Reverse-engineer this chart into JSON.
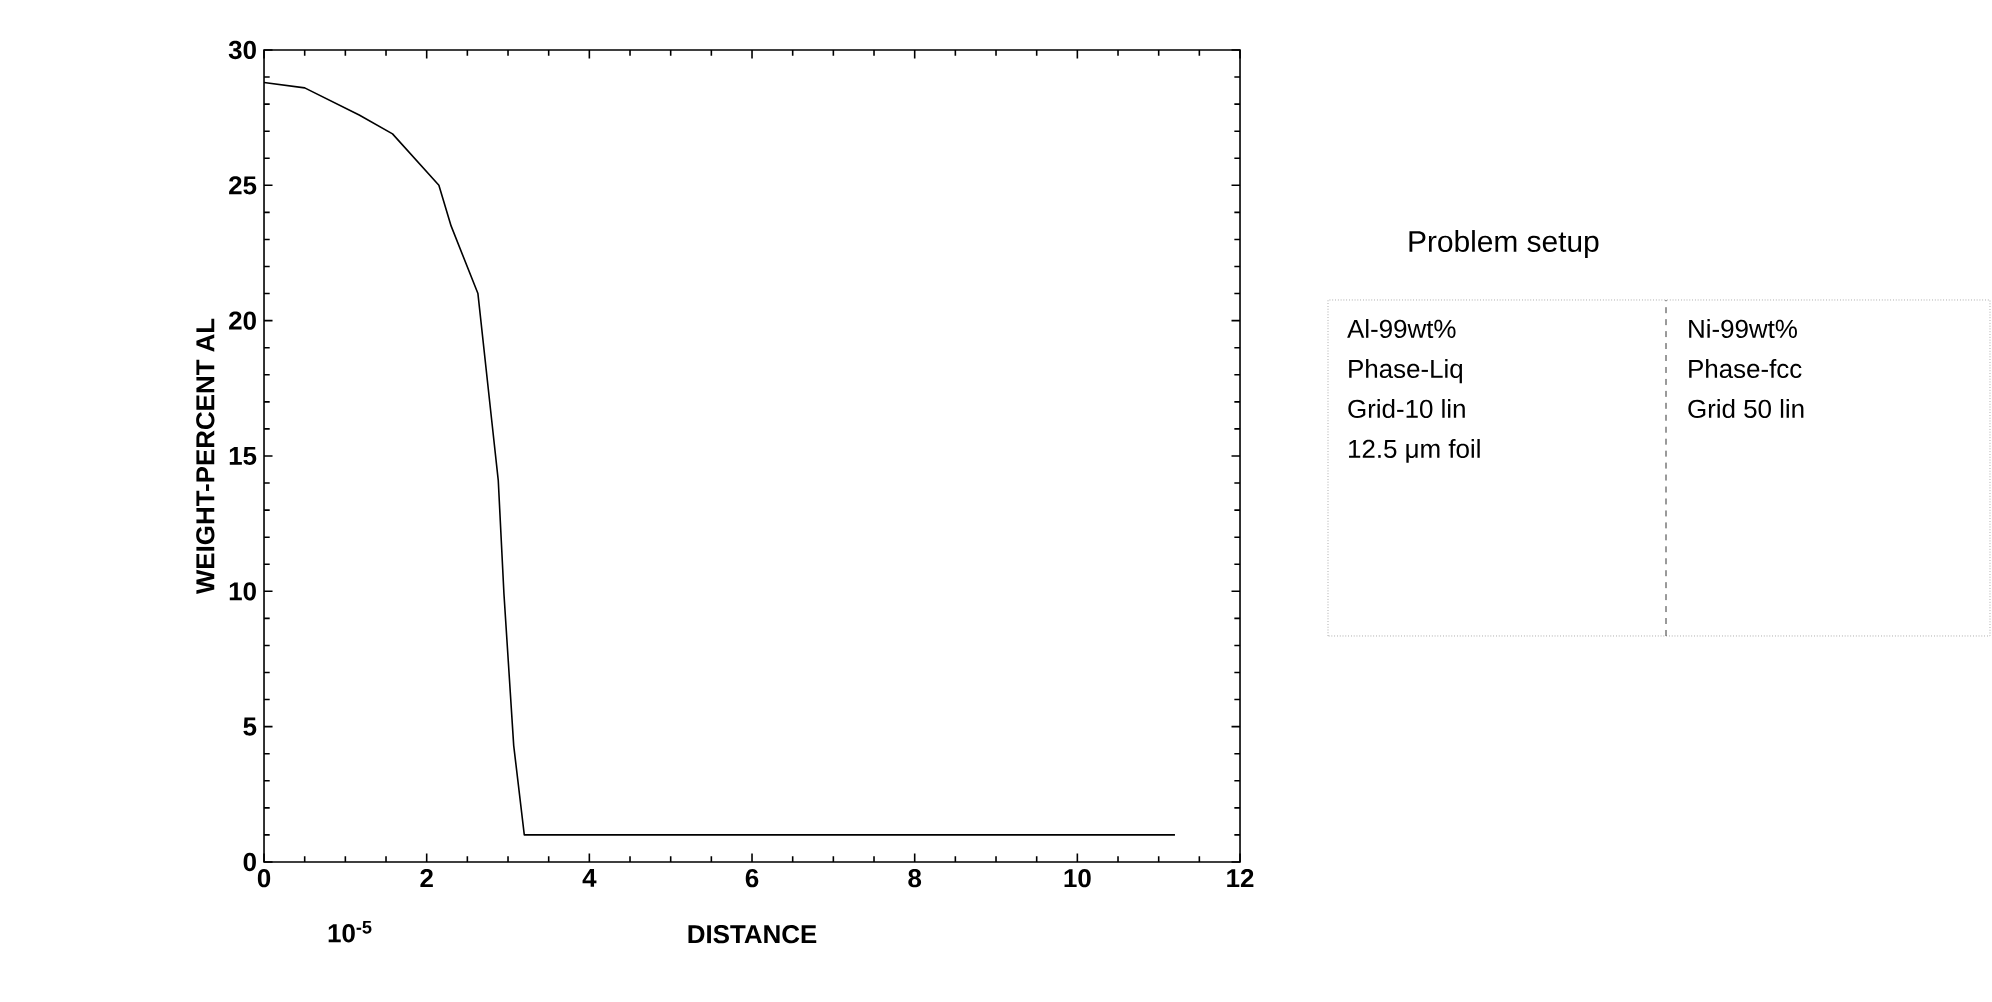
{
  "chart_data": {
    "type": "line",
    "xlabel": "DISTANCE",
    "ylabel": "WEIGHT-PERCENT AL",
    "xlim": [
      0,
      12
    ],
    "ylim": [
      0,
      30
    ],
    "xticks": [
      0,
      2,
      4,
      6,
      8,
      10,
      12
    ],
    "yticks": [
      0,
      5,
      10,
      15,
      20,
      25,
      30
    ],
    "grid": false,
    "marker": "none",
    "line_style": "solid",
    "series": [
      {
        "color": "#000000",
        "x": [
          0,
          0.5,
          1.17,
          1.58,
          2.15,
          2.3,
          2.63,
          2.8,
          2.88,
          2.95,
          3.07,
          3.2,
          11.2
        ],
        "values": [
          28.8,
          28.6,
          27.6,
          26.9,
          25.0,
          23.5,
          21.0,
          16.3,
          14.1,
          9.9,
          4.3,
          1.0,
          1.0
        ]
      }
    ],
    "annotations": [
      "10$^{-5}$",
      "Problem setup",
      "Al-99wt%",
      "Phase-Liq",
      "Grid-10 lin",
      "12.5 μm foil",
      "Ni-99wt%",
      "Phase-fcc",
      "Grid 50 lin"
    ]
  }
}
